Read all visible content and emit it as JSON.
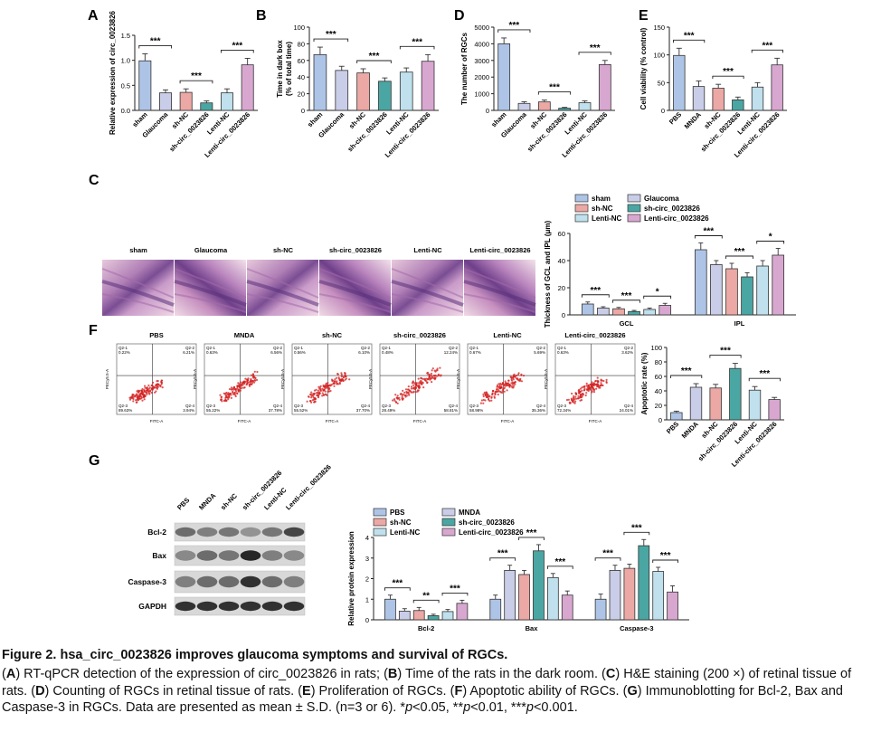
{
  "labels": {
    "sham": "sham",
    "glaucoma": "Glaucoma",
    "shnc": "sh-NC",
    "shcirc": "sh-circ_0023826",
    "lentinc": "Lenti-NC",
    "lenticirc": "Lenti-circ_0023826",
    "pbs": "PBS",
    "mnda": "MNDA"
  },
  "colors": {
    "sham": "#aec4e6",
    "glaucoma": "#c9cde7",
    "shnc": "#eba8a5",
    "shcirc": "#4aa6a3",
    "lentinc": "#bfe0ec",
    "lenticirc": "#d8a7d0"
  },
  "stars": {
    "s1": "*",
    "s2": "**",
    "s3": "***"
  },
  "panel_letters": {
    "A": "A",
    "B": "B",
    "C": "C",
    "D": "D",
    "E": "E",
    "F": "F",
    "G": "G"
  },
  "chart_data": [
    {
      "id": "A",
      "type": "bar",
      "ylabel": "Relative expression of circ_0023826",
      "ylim": [
        0,
        1.5
      ],
      "yticks": [
        "0.0",
        "0.5",
        "1.0",
        "1.5"
      ],
      "tick_values": [
        0,
        0.5,
        1,
        1.5
      ],
      "categories": [
        "sham",
        "Glaucoma",
        "sh-NC",
        "sh-circ_0023826",
        "Lenti-NC",
        "Lenti-circ_0023826"
      ],
      "values": [
        0.99,
        0.35,
        0.36,
        0.15,
        0.35,
        0.91
      ],
      "errors": [
        0.14,
        0.06,
        0.07,
        0.04,
        0.08,
        0.13
      ],
      "series_keys": [
        "sham",
        "glaucoma",
        "shnc",
        "shcirc",
        "lentinc",
        "lenticirc"
      ],
      "comparisons": [
        {
          "from": 0,
          "to": 1,
          "label": "***"
        },
        {
          "from": 2,
          "to": 3,
          "label": "***"
        },
        {
          "from": 4,
          "to": 5,
          "label": "***"
        }
      ]
    },
    {
      "id": "B",
      "type": "bar",
      "ylabel": "Time in dark box",
      "ylabel2": "(% of total time)",
      "ylim": [
        0,
        100
      ],
      "yticks": [
        "0",
        "20",
        "40",
        "60",
        "80",
        "100"
      ],
      "tick_values": [
        0,
        20,
        40,
        60,
        80,
        100
      ],
      "categories": [
        "sham",
        "Glaucoma",
        "sh-NC",
        "sh-circ_0023826",
        "Lenti-NC",
        "Lenti-circ_0023826"
      ],
      "values": [
        67,
        48,
        45,
        35,
        46,
        59
      ],
      "errors": [
        9,
        5,
        5,
        4,
        5,
        8
      ],
      "series_keys": [
        "sham",
        "glaucoma",
        "shnc",
        "shcirc",
        "lentinc",
        "lenticirc"
      ],
      "comparisons": [
        {
          "from": 0,
          "to": 1,
          "label": "***"
        },
        {
          "from": 2,
          "to": 3,
          "label": "***"
        },
        {
          "from": 4,
          "to": 5,
          "label": "***"
        }
      ]
    },
    {
      "id": "D",
      "type": "bar",
      "ylabel": "The number of RGCs",
      "ylim": [
        0,
        5000
      ],
      "yticks": [
        "0",
        "1000",
        "2000",
        "3000",
        "4000",
        "5000"
      ],
      "tick_values": [
        0,
        1000,
        2000,
        3000,
        4000,
        5000
      ],
      "categories": [
        "sham",
        "Glaucoma",
        "sh-NC",
        "sh-circ_0023826",
        "Lenti-NC",
        "Lenti-circ_0023826"
      ],
      "values": [
        4000,
        420,
        510,
        130,
        460,
        2750
      ],
      "errors": [
        350,
        100,
        110,
        50,
        110,
        250
      ],
      "series_keys": [
        "sham",
        "glaucoma",
        "shnc",
        "shcirc",
        "lentinc",
        "lenticirc"
      ],
      "comparisons": [
        {
          "from": 0,
          "to": 1,
          "label": "***"
        },
        {
          "from": 2,
          "to": 3,
          "label": "***"
        },
        {
          "from": 4,
          "to": 5,
          "label": "***"
        }
      ]
    },
    {
      "id": "E",
      "type": "bar",
      "ylabel": "Cell viability (% control)",
      "ylim": [
        0,
        150
      ],
      "yticks": [
        "0",
        "50",
        "100",
        "150"
      ],
      "tick_values": [
        0,
        50,
        100,
        150
      ],
      "categories": [
        "PBS",
        "MNDA",
        "sh-NC",
        "sh-circ_0023826",
        "Lenti-NC",
        "Lenti-circ_0023826"
      ],
      "values": [
        99,
        43,
        40,
        19,
        42,
        82
      ],
      "errors": [
        13,
        10,
        7,
        5,
        8,
        12
      ],
      "series_keys": [
        "sham",
        "glaucoma",
        "shnc",
        "shcirc",
        "lentinc",
        "lenticirc"
      ],
      "comparisons": [
        {
          "from": 0,
          "to": 1,
          "label": "***"
        },
        {
          "from": 2,
          "to": 3,
          "label": "***"
        },
        {
          "from": 4,
          "to": 5,
          "label": "***"
        }
      ]
    },
    {
      "id": "F",
      "type": "bar",
      "ylabel": "Apoptotic rate (%)",
      "ylim": [
        0,
        100
      ],
      "yticks": [
        "0",
        "20",
        "40",
        "60",
        "80",
        "100"
      ],
      "tick_values": [
        0,
        20,
        40,
        60,
        80,
        100
      ],
      "categories": [
        "PBS",
        "MNDA",
        "sh-NC",
        "sh-circ_0023826",
        "Lenti-NC",
        "Lenti-circ_0023826"
      ],
      "values": [
        10,
        45,
        44,
        71,
        41,
        28
      ],
      "errors": [
        2,
        5,
        5,
        7,
        5,
        3
      ],
      "series_keys": [
        "sham",
        "glaucoma",
        "shnc",
        "shcirc",
        "lentinc",
        "lenticirc"
      ],
      "comparisons": [
        {
          "from": 0,
          "to": 1,
          "label": "***"
        },
        {
          "from": 2,
          "to": 3,
          "label": "***"
        },
        {
          "from": 4,
          "to": 5,
          "label": "***"
        }
      ]
    },
    {
      "id": "C",
      "type": "bar",
      "ylabel": "Thickness of GCL and IPL (μm)",
      "ylim": [
        0,
        60
      ],
      "yticks": [
        "0",
        "20",
        "40",
        "60"
      ],
      "tick_values": [
        0,
        20,
        40,
        60
      ],
      "groups": [
        "GCL",
        "IPL"
      ],
      "series": [
        {
          "name": "sham",
          "key": "sham",
          "values": [
            8,
            48
          ],
          "errors": [
            1.5,
            5
          ]
        },
        {
          "name": "Glaucoma",
          "key": "glaucoma",
          "values": [
            5,
            37
          ],
          "errors": [
            1,
            3
          ]
        },
        {
          "name": "sh-NC",
          "key": "shnc",
          "values": [
            4.5,
            34
          ],
          "errors": [
            1,
            4
          ]
        },
        {
          "name": "sh-circ_0023826",
          "key": "shcirc",
          "values": [
            2.5,
            28
          ],
          "errors": [
            0.8,
            3
          ]
        },
        {
          "name": "Lenti-NC",
          "key": "lentinc",
          "values": [
            4,
            36
          ],
          "errors": [
            1,
            4
          ]
        },
        {
          "name": "Lenti-circ_0023826",
          "key": "lenticirc",
          "values": [
            7,
            44
          ],
          "errors": [
            1.5,
            5
          ]
        }
      ],
      "comparisons": [
        {
          "group": 0,
          "from": 0,
          "to": 1,
          "label": "***"
        },
        {
          "group": 0,
          "from": 2,
          "to": 3,
          "label": "***"
        },
        {
          "group": 0,
          "from": 4,
          "to": 5,
          "label": "*"
        },
        {
          "group": 1,
          "from": 0,
          "to": 1,
          "label": "***"
        },
        {
          "group": 1,
          "from": 2,
          "to": 3,
          "label": "***"
        },
        {
          "group": 1,
          "from": 4,
          "to": 5,
          "label": "*"
        }
      ]
    },
    {
      "id": "G",
      "type": "bar",
      "ylabel": "Relative protein expression",
      "ylim": [
        0,
        4
      ],
      "yticks": [
        "0",
        "1",
        "2",
        "3",
        "4"
      ],
      "tick_values": [
        0,
        1,
        2,
        3,
        4
      ],
      "groups": [
        "Bcl-2",
        "Bax",
        "Caspase-3"
      ],
      "series": [
        {
          "name": "PBS",
          "key": "sham",
          "values": [
            1.0,
            1.0,
            1.0
          ],
          "errors": [
            0.2,
            0.2,
            0.25
          ]
        },
        {
          "name": "MNDA",
          "key": "glaucoma",
          "values": [
            0.42,
            2.4,
            2.4
          ],
          "errors": [
            0.12,
            0.25,
            0.25
          ]
        },
        {
          "name": "sh-NC",
          "key": "shnc",
          "values": [
            0.45,
            2.2,
            2.5
          ],
          "errors": [
            0.15,
            0.2,
            0.2
          ]
        },
        {
          "name": "sh-circ_0023826",
          "key": "shcirc",
          "values": [
            0.2,
            3.35,
            3.6
          ],
          "errors": [
            0.07,
            0.3,
            0.3
          ]
        },
        {
          "name": "Lenti-NC",
          "key": "lentinc",
          "values": [
            0.4,
            2.05,
            2.35
          ],
          "errors": [
            0.1,
            0.2,
            0.2
          ]
        },
        {
          "name": "Lenti-circ_0023826",
          "key": "lenticirc",
          "values": [
            0.8,
            1.2,
            1.35
          ],
          "errors": [
            0.15,
            0.2,
            0.3
          ]
        }
      ],
      "comparisons": [
        {
          "group": 0,
          "from": 0,
          "to": 1,
          "label": "***"
        },
        {
          "group": 0,
          "from": 2,
          "to": 3,
          "label": "**"
        },
        {
          "group": 0,
          "from": 4,
          "to": 5,
          "label": "***"
        },
        {
          "group": 1,
          "from": 0,
          "to": 1,
          "label": "***"
        },
        {
          "group": 1,
          "from": 2,
          "to": 3,
          "label": "***"
        },
        {
          "group": 1,
          "from": 4,
          "to": 5,
          "label": "***"
        },
        {
          "group": 2,
          "from": 0,
          "to": 1,
          "label": "***"
        },
        {
          "group": 2,
          "from": 2,
          "to": 3,
          "label": "***"
        },
        {
          "group": 2,
          "from": 4,
          "to": 5,
          "label": "***"
        }
      ]
    }
  ],
  "histology": {
    "labels": [
      "sham",
      "Glaucoma",
      "sh-NC",
      "sh-circ_0023826",
      "Lenti-NC",
      "Lenti-circ_0023826"
    ]
  },
  "flow": {
    "titles": [
      "PBS",
      "MNDA",
      "sh-NC",
      "sh-circ_0023826",
      "Lenti-NC",
      "Lenti-circ_0023826"
    ],
    "xaxis": "FITC-A",
    "yaxis": "PECy5.5-A",
    "quads": [
      {
        "q1": "Q2-1\n0.22%",
        "q2": "Q2-2\n6.21%",
        "q3": "Q2-3\n89.63%",
        "q4": "Q2-4\n3.94%"
      },
      {
        "q1": "Q2-1\n0.63%",
        "q2": "Q2-2\n6.56%",
        "q3": "Q2-3\n55.22%",
        "q4": "Q2-4\n37.78%"
      },
      {
        "q1": "Q2-1\n0.56%",
        "q2": "Q2-2\n6.10%",
        "q3": "Q2-3\n55.52%",
        "q4": "Q2-4\n37.70%"
      },
      {
        "q1": "Q2-1\n0.48%",
        "q2": "Q2-2\n12.24%",
        "q3": "Q2-3\n28.49%",
        "q4": "Q2-4\n58.81%"
      },
      {
        "q1": "Q2-1\n0.67%",
        "q2": "Q2-2\n5.69%",
        "q3": "Q2-3\n58.98%",
        "q4": "Q2-4\n35.36%"
      },
      {
        "q1": "Q2-1\n0.63%",
        "q2": "Q2-2\n3.62%",
        "q3": "Q2-3\n72.34%",
        "q4": "Q2-4\n24.01%"
      }
    ]
  },
  "blot": {
    "lanes": [
      "PBS",
      "MNDA",
      "sh-NC",
      "sh-circ_0023826",
      "Lenti-NC",
      "Lenti-circ_0023826"
    ],
    "rows": [
      "Bcl-2",
      "Bax",
      "Caspase-3",
      "GAPDH"
    ]
  },
  "caption": {
    "title": "Figure 2. hsa_circ_0023826 improves glaucoma symptoms and survival of RGCs.",
    "body_html": "(<b>A</b>) RT-qPCR detection of the expression of circ_0023826 in rats; (<b>B</b>) Time of the rats in the dark room. (<b>C</b>) H&amp;E staining (200 ×) of retinal tissue of rats. (<b>D</b>) Counting of RGCs in retinal tissue of rats. (<b>E</b>) Proliferation of RGCs. (<b>F</b>) Apoptotic ability of RGCs. (<b>G</b>) Immunoblotting for Bcl-2, Bax and Caspase-3 in RGCs. Data are presented as mean ± S.D. (n=3 or 6). *<i>p</i>&lt;0.05, **<i>p</i>&lt;0.01, ***<i>p</i>&lt;0.001."
  }
}
